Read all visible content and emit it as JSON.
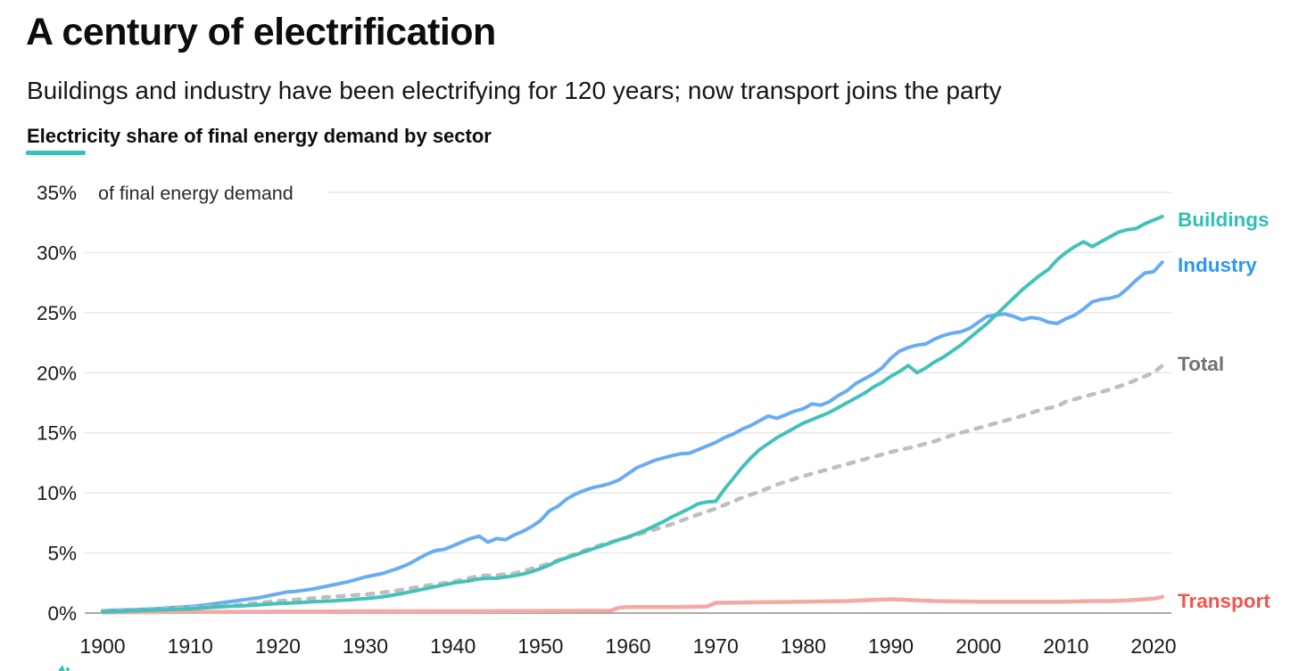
{
  "header": {
    "title": "A century of electrification",
    "subtitle": "Buildings and industry have been electrifying for 120 years; now transport joins the party",
    "chart_heading": "Electricity share of final energy demand by sector",
    "accent_color": "#35c2b8"
  },
  "chart_data": {
    "type": "line",
    "title": "Electricity share of final energy demand by sector",
    "unit_annotation": "of final energy demand",
    "xlabel": "",
    "ylabel": "",
    "xlim": [
      1900,
      2022
    ],
    "ylim": [
      0,
      35
    ],
    "grid": true,
    "legend_position": "right-end-labels",
    "x_ticks": [
      1900,
      1910,
      1920,
      1930,
      1940,
      1950,
      1960,
      1970,
      1980,
      1990,
      2000,
      2010,
      2020
    ],
    "y_ticks": {
      "values": [
        0,
        5,
        10,
        15,
        20,
        25,
        30,
        35
      ],
      "labels": [
        "0%",
        "5%",
        "10%",
        "15%",
        "20%",
        "25%",
        "30%",
        "35%"
      ]
    },
    "axis_colors": {
      "gridline": "#e4e4e4",
      "baseline": "#8f8f8f",
      "tick_text": "#1a1a1a"
    },
    "series": [
      {
        "name": "Transport",
        "color": "#f5a9a5",
        "label_color": "#f2544f",
        "dashed": false,
        "width": 4.5,
        "label_dy": 12,
        "points": [
          [
            1900,
            0.05
          ],
          [
            1910,
            0.1
          ],
          [
            1920,
            0.12
          ],
          [
            1930,
            0.15
          ],
          [
            1940,
            0.15
          ],
          [
            1950,
            0.18
          ],
          [
            1958,
            0.2
          ],
          [
            1959,
            0.45
          ],
          [
            1960,
            0.5
          ],
          [
            1965,
            0.5
          ],
          [
            1969,
            0.55
          ],
          [
            1970,
            0.85
          ],
          [
            1975,
            0.9
          ],
          [
            1980,
            0.95
          ],
          [
            1985,
            1.0
          ],
          [
            1988,
            1.1
          ],
          [
            1990,
            1.15
          ],
          [
            1992,
            1.1
          ],
          [
            1995,
            1.0
          ],
          [
            2000,
            0.95
          ],
          [
            2005,
            0.95
          ],
          [
            2010,
            0.95
          ],
          [
            2013,
            1.0
          ],
          [
            2015,
            1.0
          ],
          [
            2017,
            1.05
          ],
          [
            2019,
            1.15
          ],
          [
            2020,
            1.2
          ],
          [
            2021,
            1.35
          ]
        ]
      },
      {
        "name": "Industry",
        "color": "#6aacf4",
        "label_color": "#2d96f5",
        "dashed": false,
        "width": 4,
        "label_dy": 11,
        "points": [
          [
            1900,
            0.2
          ],
          [
            1902,
            0.25
          ],
          [
            1904,
            0.3
          ],
          [
            1906,
            0.35
          ],
          [
            1908,
            0.45
          ],
          [
            1910,
            0.55
          ],
          [
            1912,
            0.7
          ],
          [
            1914,
            0.9
          ],
          [
            1916,
            1.1
          ],
          [
            1918,
            1.3
          ],
          [
            1920,
            1.6
          ],
          [
            1921,
            1.75
          ],
          [
            1922,
            1.8
          ],
          [
            1924,
            2.0
          ],
          [
            1926,
            2.3
          ],
          [
            1928,
            2.6
          ],
          [
            1930,
            3.0
          ],
          [
            1932,
            3.3
          ],
          [
            1934,
            3.8
          ],
          [
            1935,
            4.1
          ],
          [
            1936,
            4.5
          ],
          [
            1937,
            4.9
          ],
          [
            1938,
            5.2
          ],
          [
            1939,
            5.3
          ],
          [
            1940,
            5.6
          ],
          [
            1941,
            5.9
          ],
          [
            1942,
            6.2
          ],
          [
            1943,
            6.4
          ],
          [
            1944,
            5.9
          ],
          [
            1945,
            6.2
          ],
          [
            1946,
            6.1
          ],
          [
            1947,
            6.5
          ],
          [
            1948,
            6.8
          ],
          [
            1949,
            7.2
          ],
          [
            1950,
            7.7
          ],
          [
            1951,
            8.5
          ],
          [
            1952,
            8.9
          ],
          [
            1953,
            9.5
          ],
          [
            1954,
            9.9
          ],
          [
            1955,
            10.2
          ],
          [
            1956,
            10.45
          ],
          [
            1957,
            10.6
          ],
          [
            1958,
            10.8
          ],
          [
            1959,
            11.1
          ],
          [
            1960,
            11.6
          ],
          [
            1961,
            12.1
          ],
          [
            1962,
            12.4
          ],
          [
            1963,
            12.7
          ],
          [
            1964,
            12.9
          ],
          [
            1965,
            13.1
          ],
          [
            1966,
            13.25
          ],
          [
            1967,
            13.3
          ],
          [
            1968,
            13.6
          ],
          [
            1969,
            13.9
          ],
          [
            1970,
            14.2
          ],
          [
            1971,
            14.6
          ],
          [
            1972,
            14.9
          ],
          [
            1973,
            15.3
          ],
          [
            1974,
            15.6
          ],
          [
            1975,
            16.0
          ],
          [
            1976,
            16.4
          ],
          [
            1977,
            16.2
          ],
          [
            1978,
            16.5
          ],
          [
            1979,
            16.8
          ],
          [
            1980,
            17.0
          ],
          [
            1981,
            17.4
          ],
          [
            1982,
            17.3
          ],
          [
            1983,
            17.6
          ],
          [
            1984,
            18.1
          ],
          [
            1985,
            18.5
          ],
          [
            1986,
            19.1
          ],
          [
            1987,
            19.5
          ],
          [
            1988,
            19.9
          ],
          [
            1989,
            20.4
          ],
          [
            1990,
            21.2
          ],
          [
            1991,
            21.8
          ],
          [
            1992,
            22.1
          ],
          [
            1993,
            22.3
          ],
          [
            1994,
            22.4
          ],
          [
            1995,
            22.8
          ],
          [
            1996,
            23.1
          ],
          [
            1997,
            23.3
          ],
          [
            1998,
            23.4
          ],
          [
            1999,
            23.7
          ],
          [
            2000,
            24.2
          ],
          [
            2001,
            24.7
          ],
          [
            2002,
            24.8
          ],
          [
            2003,
            24.9
          ],
          [
            2004,
            24.7
          ],
          [
            2005,
            24.4
          ],
          [
            2006,
            24.6
          ],
          [
            2007,
            24.5
          ],
          [
            2008,
            24.2
          ],
          [
            2009,
            24.1
          ],
          [
            2010,
            24.5
          ],
          [
            2011,
            24.8
          ],
          [
            2012,
            25.3
          ],
          [
            2013,
            25.9
          ],
          [
            2014,
            26.1
          ],
          [
            2015,
            26.2
          ],
          [
            2016,
            26.4
          ],
          [
            2017,
            27.0
          ],
          [
            2018,
            27.7
          ],
          [
            2019,
            28.3
          ],
          [
            2020,
            28.4
          ],
          [
            2021,
            29.2
          ]
        ]
      },
      {
        "name": "Total",
        "color": "#bfbfbf",
        "label_color": "#6e7178",
        "dashed": true,
        "width": 4.5,
        "label_dy": 6,
        "points": [
          [
            1900,
            0.15
          ],
          [
            1905,
            0.25
          ],
          [
            1910,
            0.45
          ],
          [
            1915,
            0.65
          ],
          [
            1920,
            1.0
          ],
          [
            1925,
            1.3
          ],
          [
            1930,
            1.55
          ],
          [
            1933,
            1.8
          ],
          [
            1935,
            2.05
          ],
          [
            1938,
            2.4
          ],
          [
            1940,
            2.6
          ],
          [
            1943,
            3.1
          ],
          [
            1945,
            3.15
          ],
          [
            1947,
            3.3
          ],
          [
            1950,
            3.9
          ],
          [
            1952,
            4.4
          ],
          [
            1955,
            5.2
          ],
          [
            1957,
            5.7
          ],
          [
            1960,
            6.3
          ],
          [
            1963,
            6.95
          ],
          [
            1965,
            7.4
          ],
          [
            1967,
            7.95
          ],
          [
            1970,
            8.7
          ],
          [
            1973,
            9.6
          ],
          [
            1975,
            10.1
          ],
          [
            1977,
            10.7
          ],
          [
            1980,
            11.4
          ],
          [
            1983,
            12.0
          ],
          [
            1985,
            12.4
          ],
          [
            1987,
            12.8
          ],
          [
            1990,
            13.4
          ],
          [
            1993,
            13.9
          ],
          [
            1995,
            14.3
          ],
          [
            1997,
            14.8
          ],
          [
            2000,
            15.4
          ],
          [
            2003,
            16.0
          ],
          [
            2005,
            16.4
          ],
          [
            2007,
            16.9
          ],
          [
            2009,
            17.2
          ],
          [
            2010,
            17.6
          ],
          [
            2012,
            18.0
          ],
          [
            2015,
            18.6
          ],
          [
            2017,
            19.1
          ],
          [
            2019,
            19.7
          ],
          [
            2020,
            20.0
          ],
          [
            2021,
            20.6
          ]
        ]
      },
      {
        "name": "Buildings",
        "color": "#45c2b8",
        "label_color": "#2fbfb4",
        "dashed": false,
        "width": 4,
        "label_dy": 11,
        "points": [
          [
            1900,
            0.1
          ],
          [
            1902,
            0.15
          ],
          [
            1904,
            0.2
          ],
          [
            1906,
            0.25
          ],
          [
            1908,
            0.3
          ],
          [
            1910,
            0.35
          ],
          [
            1912,
            0.45
          ],
          [
            1914,
            0.55
          ],
          [
            1916,
            0.6
          ],
          [
            1918,
            0.7
          ],
          [
            1920,
            0.8
          ],
          [
            1922,
            0.85
          ],
          [
            1924,
            0.95
          ],
          [
            1926,
            1.0
          ],
          [
            1928,
            1.1
          ],
          [
            1930,
            1.2
          ],
          [
            1932,
            1.35
          ],
          [
            1934,
            1.6
          ],
          [
            1936,
            1.9
          ],
          [
            1938,
            2.2
          ],
          [
            1940,
            2.5
          ],
          [
            1942,
            2.7
          ],
          [
            1943,
            2.85
          ],
          [
            1944,
            2.9
          ],
          [
            1945,
            2.9
          ],
          [
            1946,
            3.0
          ],
          [
            1947,
            3.1
          ],
          [
            1948,
            3.25
          ],
          [
            1949,
            3.45
          ],
          [
            1950,
            3.7
          ],
          [
            1951,
            4.0
          ],
          [
            1952,
            4.35
          ],
          [
            1953,
            4.6
          ],
          [
            1954,
            4.85
          ],
          [
            1955,
            5.1
          ],
          [
            1956,
            5.35
          ],
          [
            1957,
            5.6
          ],
          [
            1958,
            5.85
          ],
          [
            1959,
            6.1
          ],
          [
            1960,
            6.35
          ],
          [
            1961,
            6.6
          ],
          [
            1962,
            6.9
          ],
          [
            1963,
            7.25
          ],
          [
            1964,
            7.6
          ],
          [
            1965,
            8.0
          ],
          [
            1966,
            8.35
          ],
          [
            1967,
            8.7
          ],
          [
            1968,
            9.1
          ],
          [
            1969,
            9.25
          ],
          [
            1970,
            9.3
          ],
          [
            1971,
            10.3
          ],
          [
            1972,
            11.2
          ],
          [
            1973,
            12.1
          ],
          [
            1974,
            12.9
          ],
          [
            1975,
            13.6
          ],
          [
            1976,
            14.1
          ],
          [
            1977,
            14.6
          ],
          [
            1978,
            15.0
          ],
          [
            1979,
            15.4
          ],
          [
            1980,
            15.8
          ],
          [
            1981,
            16.1
          ],
          [
            1982,
            16.4
          ],
          [
            1983,
            16.7
          ],
          [
            1984,
            17.1
          ],
          [
            1985,
            17.5
          ],
          [
            1986,
            17.9
          ],
          [
            1987,
            18.3
          ],
          [
            1988,
            18.8
          ],
          [
            1989,
            19.2
          ],
          [
            1990,
            19.7
          ],
          [
            1991,
            20.1
          ],
          [
            1992,
            20.6
          ],
          [
            1993,
            20.0
          ],
          [
            1994,
            20.4
          ],
          [
            1995,
            20.9
          ],
          [
            1996,
            21.3
          ],
          [
            1997,
            21.8
          ],
          [
            1998,
            22.3
          ],
          [
            1999,
            22.9
          ],
          [
            2000,
            23.5
          ],
          [
            2001,
            24.1
          ],
          [
            2002,
            24.8
          ],
          [
            2003,
            25.5
          ],
          [
            2004,
            26.2
          ],
          [
            2005,
            26.9
          ],
          [
            2006,
            27.5
          ],
          [
            2007,
            28.1
          ],
          [
            2008,
            28.6
          ],
          [
            2009,
            29.4
          ],
          [
            2010,
            30.0
          ],
          [
            2011,
            30.5
          ],
          [
            2012,
            30.9
          ],
          [
            2013,
            30.5
          ],
          [
            2014,
            30.9
          ],
          [
            2015,
            31.3
          ],
          [
            2016,
            31.7
          ],
          [
            2017,
            31.9
          ],
          [
            2018,
            32.0
          ],
          [
            2019,
            32.4
          ],
          [
            2020,
            32.7
          ],
          [
            2021,
            33.0
          ]
        ]
      }
    ]
  }
}
